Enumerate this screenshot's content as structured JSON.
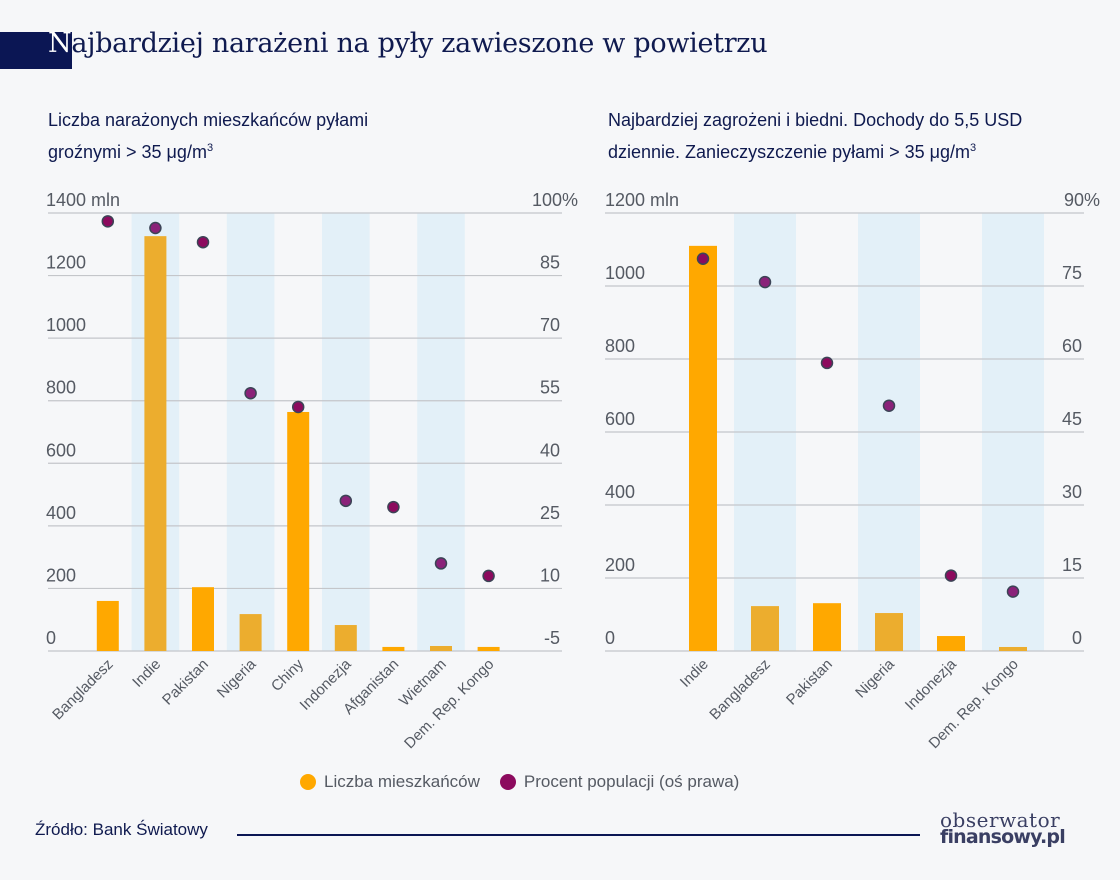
{
  "header": {
    "title_first_letter": "N",
    "title_rest": "ajbardziej narażeni na pyły zawieszone w powietrzu"
  },
  "colors": {
    "bar": "#ffa800",
    "bar_alt": "#ecad2e",
    "dot": "#8c0a5e",
    "dot_alt": "#8a2279",
    "dot_stroke": "#3c4456",
    "band": "#e3f0f8",
    "grid": "#c4c6ca",
    "axis_text": "#555a63",
    "brand": "#0b1654"
  },
  "chart_data": [
    {
      "type": "bar",
      "title_line1": "Liczba narażonych mieszkańców pyłami",
      "title_line2": "groźnymi > 35 μg/m",
      "title_sup": "3",
      "categories": [
        "Bangladesz",
        "Indie",
        "Pakistan",
        "Nigeria",
        "Chiny",
        "Indonezja",
        "Afganistan",
        "Wietnam",
        "Dem. Rep. Kongo"
      ],
      "series": [
        {
          "name": "Liczba mieszkańców",
          "axis": "left",
          "type": "bar",
          "values": [
            160,
            1326,
            204,
            118,
            764,
            83,
            13,
            16,
            13
          ]
        },
        {
          "name": "Procent populacji (oś prawa)",
          "axis": "right",
          "type": "scatter",
          "values": [
            98,
            96.4,
            93,
            56.8,
            53.5,
            31,
            29.5,
            16,
            13
          ]
        }
      ],
      "ylim": [
        0,
        1400
      ],
      "yticks": [
        0,
        200,
        400,
        600,
        800,
        1000,
        1200,
        1400
      ],
      "ytick_labels": [
        "0",
        "200",
        "400",
        "600",
        "800",
        "1000",
        "1200",
        "1400 mln"
      ],
      "y2lim": [
        -5,
        100
      ],
      "y2ticks": [
        -5,
        10,
        25,
        40,
        55,
        70,
        85,
        100
      ],
      "y2tick_labels": [
        "-5",
        "10",
        "25",
        "40",
        "55",
        "70",
        "85",
        "100%"
      ],
      "grid": true,
      "banded_columns": [
        1,
        3,
        5,
        7
      ]
    },
    {
      "type": "bar",
      "title_line1": "Najbardziej zagrożeni i biedni. Dochody do 5,5 USD",
      "title_line2": "dziennie. Zanieczyszczenie pyłami > 35 μg/m",
      "title_sup": "3",
      "categories": [
        "Indie",
        "Bangladesz",
        "Pakistan",
        "Nigeria",
        "Indonezja",
        "Dem. Rep. Kongo"
      ],
      "series": [
        {
          "name": "Liczba mieszkańców",
          "axis": "left",
          "type": "bar",
          "values": [
            1110,
            123,
            131,
            104,
            41,
            11
          ]
        },
        {
          "name": "Procent populacji (oś prawa)",
          "axis": "right",
          "type": "scatter",
          "values": [
            80.6,
            75.8,
            59.2,
            50.4,
            15.5,
            12.2
          ]
        }
      ],
      "ylim": [
        0,
        1200
      ],
      "yticks": [
        0,
        200,
        400,
        600,
        800,
        1000,
        1200
      ],
      "ytick_labels": [
        "0",
        "200",
        "400",
        "600",
        "800",
        "1000",
        "1200 mln"
      ],
      "y2lim": [
        0,
        90
      ],
      "y2ticks": [
        0,
        15,
        30,
        45,
        60,
        75,
        90
      ],
      "y2tick_labels": [
        "0",
        "15",
        "30",
        "45",
        "60",
        "75",
        "90%"
      ],
      "grid": true,
      "banded_columns": [
        1,
        3,
        5
      ]
    }
  ],
  "legend": {
    "placement": "bottom-center",
    "items": [
      {
        "label": "Liczba mieszkańców"
      },
      {
        "label": "Procent populacji (oś prawa)"
      }
    ]
  },
  "footer": {
    "source": "Źródło: Bank Światowy",
    "logo_line1": "obserwator",
    "logo_line2": "finansowy.pl"
  }
}
